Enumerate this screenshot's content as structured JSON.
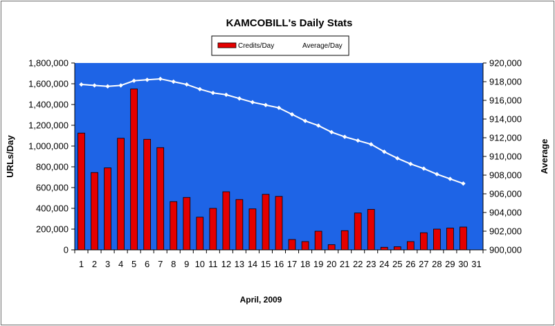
{
  "chart_data": {
    "type": "bar",
    "title": "KAMCOBILL's Daily Stats",
    "xlabel": "April, 2009",
    "ylabel_left": "URLs/Day",
    "ylabel_right": "Average",
    "categories": [
      "1",
      "2",
      "3",
      "4",
      "5",
      "6",
      "7",
      "8",
      "9",
      "10",
      "11",
      "12",
      "13",
      "14",
      "15",
      "16",
      "17",
      "18",
      "19",
      "20",
      "21",
      "22",
      "23",
      "24",
      "25",
      "26",
      "27",
      "28",
      "29",
      "30",
      "31"
    ],
    "ylim_left": [
      0,
      1800000
    ],
    "ylim_right": [
      900000,
      920000
    ],
    "y_ticks_left": [
      "0",
      "200,000",
      "400,000",
      "600,000",
      "800,000",
      "1,000,000",
      "1,200,000",
      "1,400,000",
      "1,600,000",
      "1,800,000"
    ],
    "y_ticks_right": [
      "900,000",
      "902,000",
      "904,000",
      "906,000",
      "908,000",
      "910,000",
      "912,000",
      "914,000",
      "916,000",
      "918,000",
      "920,000"
    ],
    "legend_position": "top",
    "grid": false,
    "plot_background": "#1e64e6",
    "series": [
      {
        "name": "Credits/Day",
        "type": "bar",
        "axis": "left",
        "color": "#e40000",
        "values": [
          1125000,
          745000,
          790000,
          1075000,
          1550000,
          1065000,
          985000,
          465000,
          505000,
          315000,
          400000,
          560000,
          485000,
          395000,
          535000,
          515000,
          100000,
          80000,
          180000,
          50000,
          185000,
          355000,
          390000,
          25000,
          30000,
          80000,
          165000,
          200000,
          210000,
          220000,
          null
        ]
      },
      {
        "name": "Average/Day",
        "type": "line",
        "axis": "right",
        "color": "#ffffff",
        "values": [
          917700,
          917600,
          917500,
          917600,
          918100,
          918200,
          918300,
          918000,
          917700,
          917200,
          916800,
          916600,
          916200,
          915800,
          915500,
          915200,
          914500,
          913800,
          913300,
          912600,
          912100,
          911700,
          911300,
          910500,
          909800,
          909200,
          908700,
          908100,
          907600,
          907100,
          null
        ]
      }
    ]
  },
  "icons": {
    "legend_bar_swatch": "red-bar-swatch-icon",
    "legend_line_swatch": "white-line-marker-icon"
  }
}
